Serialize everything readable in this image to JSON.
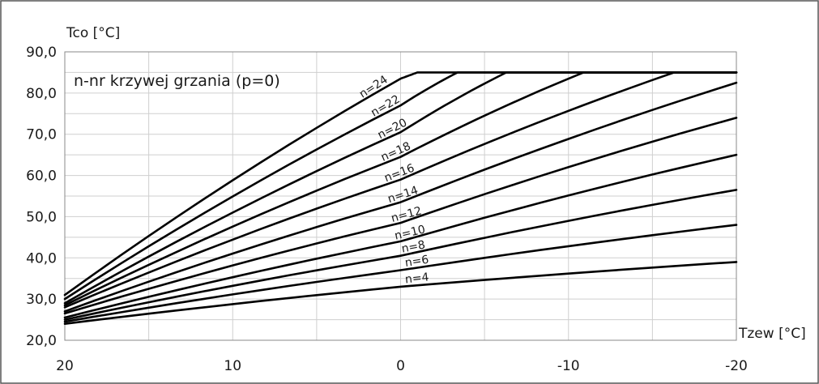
{
  "chart_data": {
    "type": "line",
    "title": "",
    "xlabel": "Tzew [°C]",
    "ylabel": "Tco [°C]",
    "annotation": "n-nr krzywej grzania (p=0)",
    "xlim": [
      20,
      -20
    ],
    "ylim": [
      20,
      90
    ],
    "x_ticks": [
      20,
      10,
      0,
      -10,
      -20
    ],
    "x_tick_labels": [
      "20",
      "10",
      "0",
      "-10",
      "-20"
    ],
    "y_ticks": [
      20,
      30,
      40,
      50,
      60,
      70,
      80,
      90
    ],
    "y_tick_labels": [
      "20,0",
      "30,0",
      "40,0",
      "50,0",
      "60,0",
      "70,0",
      "80,0",
      "90,0"
    ],
    "x_minor_step": 5,
    "y_minor_step": 5,
    "grid": true,
    "line_color": "#000000",
    "grid_color": "#cfcfcf",
    "series": [
      {
        "name": "n=4",
        "label_x": -1.0,
        "x": [
          20,
          0,
          -20
        ],
        "y": [
          24.0,
          33.0,
          39.0
        ]
      },
      {
        "name": "n=6",
        "label_x": -1.0,
        "x": [
          20,
          0,
          -20
        ],
        "y": [
          24.5,
          37.0,
          48.0
        ]
      },
      {
        "name": "n=8",
        "label_x": -0.8,
        "x": [
          20,
          0,
          -20
        ],
        "y": [
          25.0,
          40.5,
          56.5
        ]
      },
      {
        "name": "n=10",
        "label_x": -0.6,
        "x": [
          20,
          0,
          -20
        ],
        "y": [
          25.5,
          44.0,
          65.0
        ]
      },
      {
        "name": "n=12",
        "label_x": -0.4,
        "x": [
          20,
          0,
          -20
        ],
        "y": [
          26.5,
          48.5,
          74.0
        ]
      },
      {
        "name": "n=14",
        "label_x": -0.2,
        "x": [
          20,
          0,
          -20
        ],
        "y": [
          27.0,
          53.5,
          82.5
        ]
      },
      {
        "name": "n=16",
        "label_x": 0.0,
        "x": [
          20,
          0,
          -16.3,
          -20
        ],
        "y": [
          28.0,
          59.0,
          85.0,
          85.0
        ]
      },
      {
        "name": "n=18",
        "label_x": 0.2,
        "x": [
          20,
          0,
          -10.9,
          -20
        ],
        "y": [
          28.5,
          64.5,
          85.0,
          85.0
        ]
      },
      {
        "name": "n=20",
        "label_x": 0.4,
        "x": [
          20,
          0,
          -6.3,
          -20
        ],
        "y": [
          29.0,
          70.5,
          85.0,
          85.0
        ]
      },
      {
        "name": "n=22",
        "label_x": 0.8,
        "x": [
          20,
          0,
          -3.4,
          -20
        ],
        "y": [
          30.0,
          77.0,
          85.0,
          85.0
        ]
      },
      {
        "name": "n=24",
        "label_x": 1.5,
        "x": [
          20,
          0,
          -1.0,
          -20
        ],
        "y": [
          31.0,
          83.5,
          85.0,
          85.0
        ]
      }
    ]
  }
}
